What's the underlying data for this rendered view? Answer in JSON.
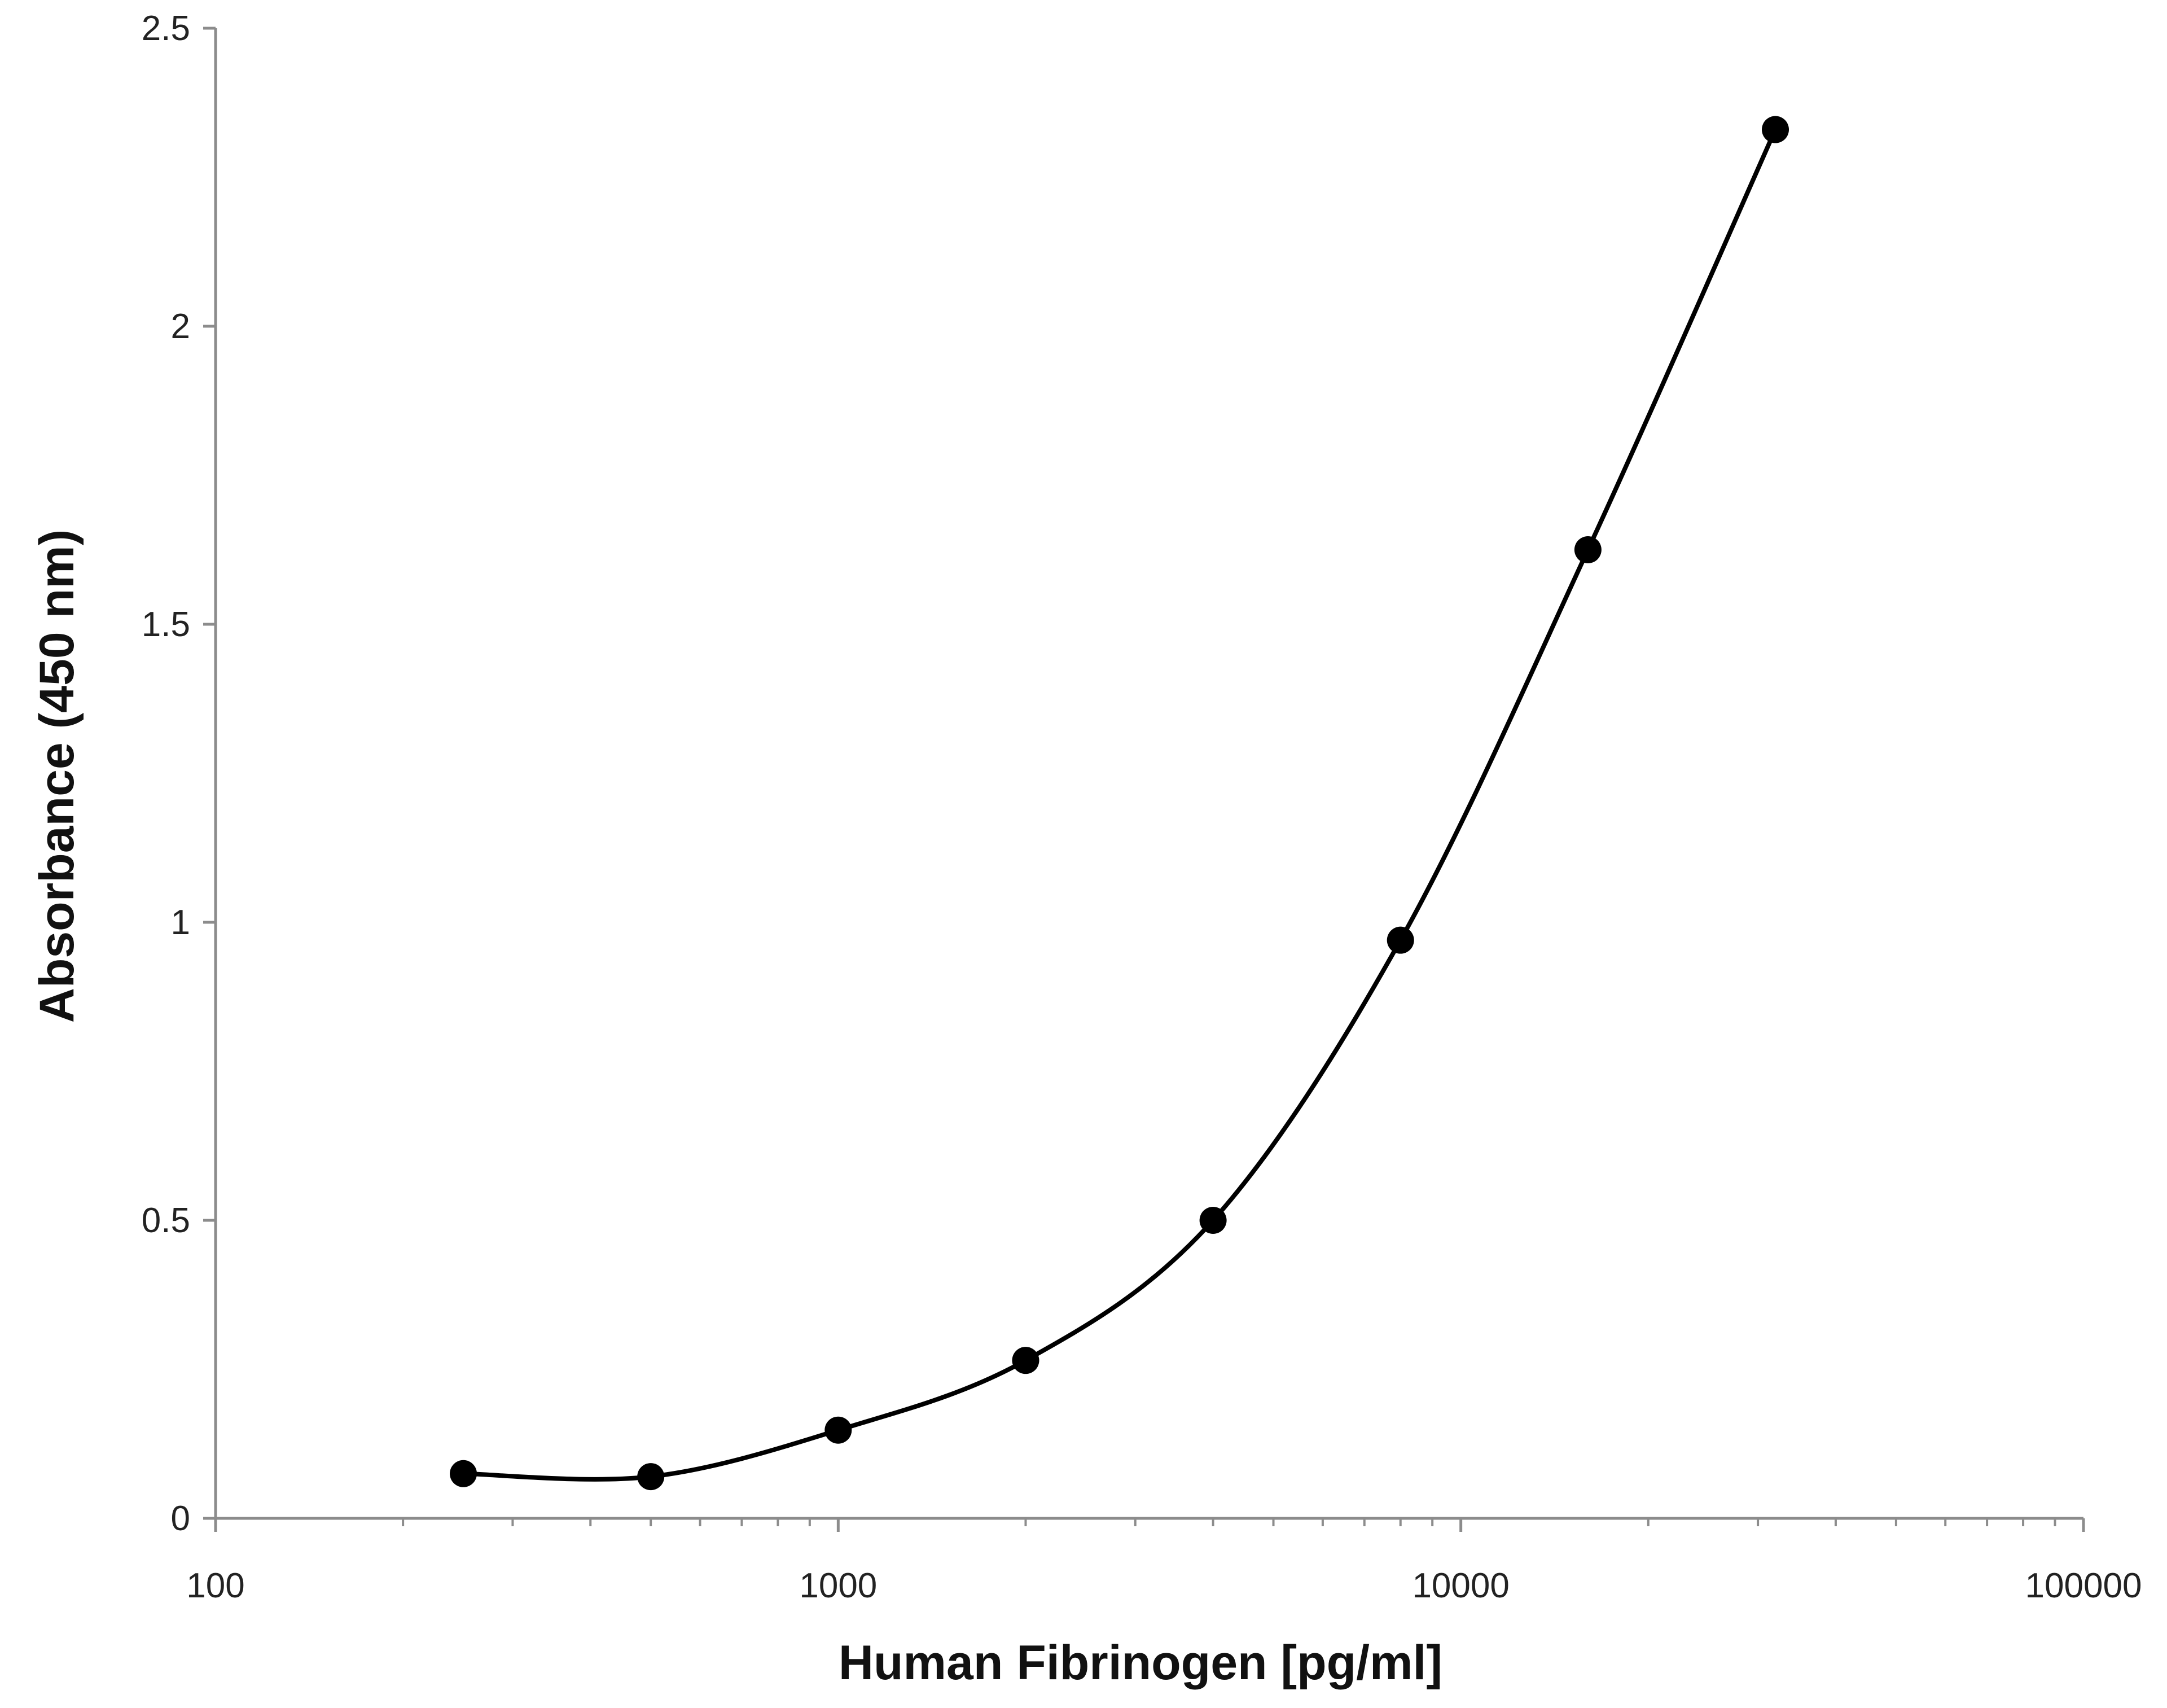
{
  "chart_data": {
    "type": "line",
    "title": "",
    "xlabel": "Human Fibrinogen [pg/ml]",
    "ylabel": "Absorbance (450 nm)",
    "x_scale": "log",
    "xlim": [
      100,
      100000
    ],
    "ylim": [
      0,
      2.5
    ],
    "x_ticks": [
      "100",
      "1000",
      "10000",
      "100000"
    ],
    "y_ticks": [
      "0",
      "0.5",
      "1",
      "1.5",
      "2",
      "2.5"
    ],
    "grid": false,
    "legend": "none",
    "line_color": "#000000",
    "marker_color": "#000000",
    "series": [
      {
        "x": [
          250,
          500,
          1000,
          2000,
          4000,
          8000,
          16000,
          32000
        ],
        "y": [
          0.075,
          0.07,
          0.148,
          0.265,
          0.5,
          0.97,
          1.625,
          2.33
        ]
      }
    ]
  }
}
